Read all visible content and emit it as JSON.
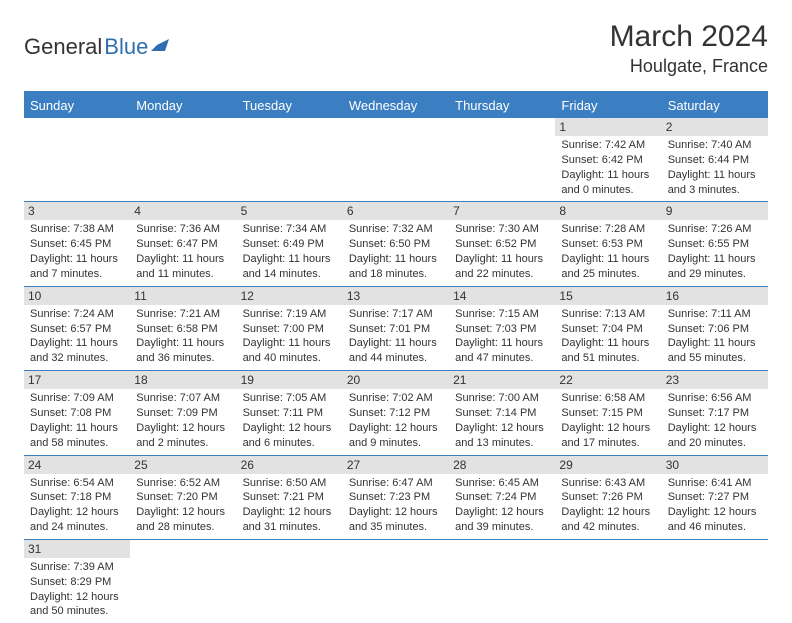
{
  "logo": {
    "text1": "General",
    "text2": "Blue"
  },
  "title": "March 2024",
  "location": "Houlgate, France",
  "colors": {
    "header_bg": "#3b7ec2",
    "header_fg": "#ffffff",
    "daynum_bg": "#e2e2e2",
    "rule": "#3b7ec2",
    "text": "#333333",
    "logo_blue": "#2f6fb0"
  },
  "weekdays": [
    "Sunday",
    "Monday",
    "Tuesday",
    "Wednesday",
    "Thursday",
    "Friday",
    "Saturday"
  ],
  "weeks": [
    [
      {
        "blank": true
      },
      {
        "blank": true
      },
      {
        "blank": true
      },
      {
        "blank": true
      },
      {
        "blank": true
      },
      {
        "num": "1",
        "sunrise": "Sunrise: 7:42 AM",
        "sunset": "Sunset: 6:42 PM",
        "daylight1": "Daylight: 11 hours",
        "daylight2": "and 0 minutes."
      },
      {
        "num": "2",
        "sunrise": "Sunrise: 7:40 AM",
        "sunset": "Sunset: 6:44 PM",
        "daylight1": "Daylight: 11 hours",
        "daylight2": "and 3 minutes."
      }
    ],
    [
      {
        "num": "3",
        "sunrise": "Sunrise: 7:38 AM",
        "sunset": "Sunset: 6:45 PM",
        "daylight1": "Daylight: 11 hours",
        "daylight2": "and 7 minutes."
      },
      {
        "num": "4",
        "sunrise": "Sunrise: 7:36 AM",
        "sunset": "Sunset: 6:47 PM",
        "daylight1": "Daylight: 11 hours",
        "daylight2": "and 11 minutes."
      },
      {
        "num": "5",
        "sunrise": "Sunrise: 7:34 AM",
        "sunset": "Sunset: 6:49 PM",
        "daylight1": "Daylight: 11 hours",
        "daylight2": "and 14 minutes."
      },
      {
        "num": "6",
        "sunrise": "Sunrise: 7:32 AM",
        "sunset": "Sunset: 6:50 PM",
        "daylight1": "Daylight: 11 hours",
        "daylight2": "and 18 minutes."
      },
      {
        "num": "7",
        "sunrise": "Sunrise: 7:30 AM",
        "sunset": "Sunset: 6:52 PM",
        "daylight1": "Daylight: 11 hours",
        "daylight2": "and 22 minutes."
      },
      {
        "num": "8",
        "sunrise": "Sunrise: 7:28 AM",
        "sunset": "Sunset: 6:53 PM",
        "daylight1": "Daylight: 11 hours",
        "daylight2": "and 25 minutes."
      },
      {
        "num": "9",
        "sunrise": "Sunrise: 7:26 AM",
        "sunset": "Sunset: 6:55 PM",
        "daylight1": "Daylight: 11 hours",
        "daylight2": "and 29 minutes."
      }
    ],
    [
      {
        "num": "10",
        "sunrise": "Sunrise: 7:24 AM",
        "sunset": "Sunset: 6:57 PM",
        "daylight1": "Daylight: 11 hours",
        "daylight2": "and 32 minutes."
      },
      {
        "num": "11",
        "sunrise": "Sunrise: 7:21 AM",
        "sunset": "Sunset: 6:58 PM",
        "daylight1": "Daylight: 11 hours",
        "daylight2": "and 36 minutes."
      },
      {
        "num": "12",
        "sunrise": "Sunrise: 7:19 AM",
        "sunset": "Sunset: 7:00 PM",
        "daylight1": "Daylight: 11 hours",
        "daylight2": "and 40 minutes."
      },
      {
        "num": "13",
        "sunrise": "Sunrise: 7:17 AM",
        "sunset": "Sunset: 7:01 PM",
        "daylight1": "Daylight: 11 hours",
        "daylight2": "and 44 minutes."
      },
      {
        "num": "14",
        "sunrise": "Sunrise: 7:15 AM",
        "sunset": "Sunset: 7:03 PM",
        "daylight1": "Daylight: 11 hours",
        "daylight2": "and 47 minutes."
      },
      {
        "num": "15",
        "sunrise": "Sunrise: 7:13 AM",
        "sunset": "Sunset: 7:04 PM",
        "daylight1": "Daylight: 11 hours",
        "daylight2": "and 51 minutes."
      },
      {
        "num": "16",
        "sunrise": "Sunrise: 7:11 AM",
        "sunset": "Sunset: 7:06 PM",
        "daylight1": "Daylight: 11 hours",
        "daylight2": "and 55 minutes."
      }
    ],
    [
      {
        "num": "17",
        "sunrise": "Sunrise: 7:09 AM",
        "sunset": "Sunset: 7:08 PM",
        "daylight1": "Daylight: 11 hours",
        "daylight2": "and 58 minutes."
      },
      {
        "num": "18",
        "sunrise": "Sunrise: 7:07 AM",
        "sunset": "Sunset: 7:09 PM",
        "daylight1": "Daylight: 12 hours",
        "daylight2": "and 2 minutes."
      },
      {
        "num": "19",
        "sunrise": "Sunrise: 7:05 AM",
        "sunset": "Sunset: 7:11 PM",
        "daylight1": "Daylight: 12 hours",
        "daylight2": "and 6 minutes."
      },
      {
        "num": "20",
        "sunrise": "Sunrise: 7:02 AM",
        "sunset": "Sunset: 7:12 PM",
        "daylight1": "Daylight: 12 hours",
        "daylight2": "and 9 minutes."
      },
      {
        "num": "21",
        "sunrise": "Sunrise: 7:00 AM",
        "sunset": "Sunset: 7:14 PM",
        "daylight1": "Daylight: 12 hours",
        "daylight2": "and 13 minutes."
      },
      {
        "num": "22",
        "sunrise": "Sunrise: 6:58 AM",
        "sunset": "Sunset: 7:15 PM",
        "daylight1": "Daylight: 12 hours",
        "daylight2": "and 17 minutes."
      },
      {
        "num": "23",
        "sunrise": "Sunrise: 6:56 AM",
        "sunset": "Sunset: 7:17 PM",
        "daylight1": "Daylight: 12 hours",
        "daylight2": "and 20 minutes."
      }
    ],
    [
      {
        "num": "24",
        "sunrise": "Sunrise: 6:54 AM",
        "sunset": "Sunset: 7:18 PM",
        "daylight1": "Daylight: 12 hours",
        "daylight2": "and 24 minutes."
      },
      {
        "num": "25",
        "sunrise": "Sunrise: 6:52 AM",
        "sunset": "Sunset: 7:20 PM",
        "daylight1": "Daylight: 12 hours",
        "daylight2": "and 28 minutes."
      },
      {
        "num": "26",
        "sunrise": "Sunrise: 6:50 AM",
        "sunset": "Sunset: 7:21 PM",
        "daylight1": "Daylight: 12 hours",
        "daylight2": "and 31 minutes."
      },
      {
        "num": "27",
        "sunrise": "Sunrise: 6:47 AM",
        "sunset": "Sunset: 7:23 PM",
        "daylight1": "Daylight: 12 hours",
        "daylight2": "and 35 minutes."
      },
      {
        "num": "28",
        "sunrise": "Sunrise: 6:45 AM",
        "sunset": "Sunset: 7:24 PM",
        "daylight1": "Daylight: 12 hours",
        "daylight2": "and 39 minutes."
      },
      {
        "num": "29",
        "sunrise": "Sunrise: 6:43 AM",
        "sunset": "Sunset: 7:26 PM",
        "daylight1": "Daylight: 12 hours",
        "daylight2": "and 42 minutes."
      },
      {
        "num": "30",
        "sunrise": "Sunrise: 6:41 AM",
        "sunset": "Sunset: 7:27 PM",
        "daylight1": "Daylight: 12 hours",
        "daylight2": "and 46 minutes."
      }
    ],
    [
      {
        "num": "31",
        "sunrise": "Sunrise: 7:39 AM",
        "sunset": "Sunset: 8:29 PM",
        "daylight1": "Daylight: 12 hours",
        "daylight2": "and 50 minutes."
      },
      {
        "blank": true
      },
      {
        "blank": true
      },
      {
        "blank": true
      },
      {
        "blank": true
      },
      {
        "blank": true
      },
      {
        "blank": true
      }
    ]
  ]
}
